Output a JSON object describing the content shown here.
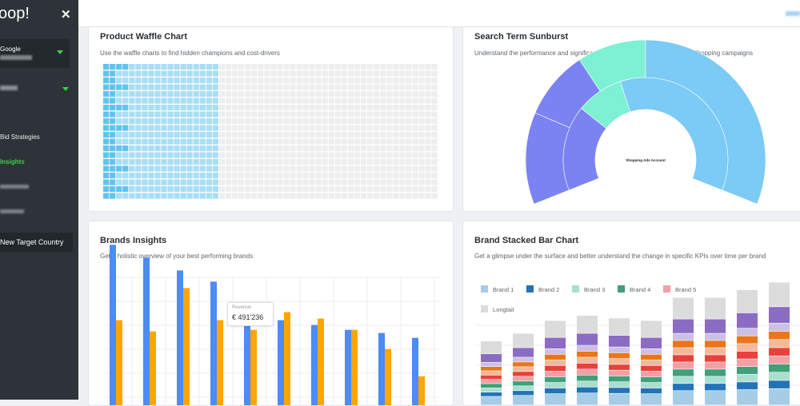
{
  "sidebar": {
    "logo": "oop!",
    "close_icon": "close-icon",
    "account": {
      "label": "Google"
    },
    "nav": [
      {
        "label": "Bid Strategies",
        "active": false
      },
      {
        "label": "Insights",
        "active": true
      }
    ],
    "new_target_button": "New Target Country"
  },
  "cards": {
    "waffle": {
      "title": "Product Waffle Chart",
      "description": "Use the waffle charts to find hidden champions and cost-drivers"
    },
    "sunburst": {
      "title": "Search Term Sunburst",
      "description": "Understand the performance and significance of different query types in your Shopping campaigns",
      "center_label": "Shopping Ads Account"
    },
    "brands": {
      "title": "Brands Insights",
      "description": "Get a holistic overview of your best performing brands",
      "tooltip": {
        "label": "Revenue",
        "value": "€ 491'236"
      }
    },
    "stacked": {
      "title": "Brand Stacked Bar Chart",
      "description": "Get a glimpse under the surface and better understand the change in specific KPIs over time per brand"
    }
  },
  "chart_data": [
    {
      "type": "heatmap",
      "chart": "waffle",
      "rows": 20,
      "cols": 26,
      "highlighted_cols": 9,
      "highlighted_color": "#a8def6",
      "highlighted_strong_color": "#5fc4ef",
      "base_color": "#eeeeee"
    },
    {
      "type": "pie",
      "chart": "sunburst",
      "inner": [
        {
          "share": 0.27,
          "color": "#7b82f2"
        },
        {
          "share": 0.15,
          "color": "#7ef0d4"
        },
        {
          "share": 0.58,
          "color": "#7ccaf6"
        }
      ],
      "outer": [
        {
          "share": 0.2,
          "color": "#7b82f2"
        },
        {
          "share": 0.15,
          "color": "#7b82f2"
        },
        {
          "share": 0.15,
          "color": "#7ef0d4"
        },
        {
          "share": 0.5,
          "color": "#7ccaf6"
        }
      ]
    },
    {
      "type": "bar",
      "chart": "brands",
      "series": [
        {
          "values": [
            100,
            92,
            84,
            77,
            57,
            53,
            50,
            47,
            45,
            42
          ],
          "color": "#4b8cf5"
        },
        {
          "values": [
            53,
            46,
            73,
            53,
            47,
            58,
            54,
            47,
            35,
            18
          ],
          "color": "#ffa500"
        }
      ],
      "ylim": [
        0,
        110
      ],
      "grid": true
    },
    {
      "type": "bar",
      "chart": "stacked",
      "legend": [
        {
          "name": "Brand 1",
          "color": "#a6cde6"
        },
        {
          "name": "Brand 2",
          "color": "#2373b8"
        },
        {
          "name": "Brand 3",
          "color": "#a9dfcf"
        },
        {
          "name": "Brand 4",
          "color": "#3fa07a"
        },
        {
          "name": "Brand 5",
          "color": "#f2a0a6"
        },
        {
          "name": "Longtail",
          "color": "#dcdcdc"
        }
      ],
      "stack_colors": [
        "#a6cde6",
        "#2373b8",
        "#a9dfcf",
        "#3fa07a",
        "#f2a0a6",
        "#e8413b",
        "#f6b89a",
        "#e9761a",
        "#cdc0e6",
        "#8b6cc4",
        "#dcdcdc"
      ],
      "stack_values": [
        2,
        1,
        1,
        1,
        1,
        1,
        1,
        1,
        1,
        2,
        3
      ],
      "totals": [
        25,
        28,
        33,
        35,
        34,
        33,
        42,
        42,
        45,
        48
      ],
      "legend_position": "top",
      "grid": true
    }
  ]
}
